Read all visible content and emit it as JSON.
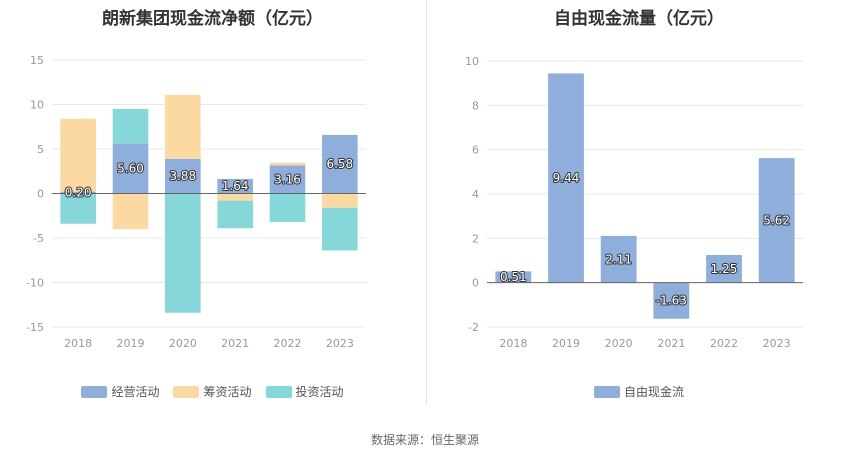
{
  "source_note": "数据来源：恒生聚源",
  "chart_data": [
    {
      "type": "bar",
      "stacked": true,
      "title": "朗新集团现金流净额（亿元）",
      "categories": [
        "2018",
        "2019",
        "2020",
        "2021",
        "2022",
        "2023"
      ],
      "ylim": [
        -15,
        15
      ],
      "yticks": [
        -15,
        -10,
        -5,
        0,
        5,
        10,
        15
      ],
      "grid": true,
      "legend_position": "bottom",
      "series": [
        {
          "name": "经营活动",
          "color": "#8eaedc",
          "values": [
            0.2,
            5.6,
            3.88,
            1.64,
            3.16,
            6.58
          ],
          "show_labels": true
        },
        {
          "name": "筹资活动",
          "color": "#fcd9a0",
          "values": [
            8.2,
            -4.0,
            7.2,
            -0.8,
            0.3,
            -1.6
          ],
          "show_labels": false
        },
        {
          "name": "投资活动",
          "color": "#86d7d9",
          "values": [
            -3.4,
            3.9,
            -13.4,
            -3.1,
            -3.2,
            -4.8
          ],
          "show_labels": false
        }
      ],
      "labels": [
        "0.20",
        "5.60",
        "3.88",
        "1.64",
        "3.16",
        "6.58"
      ]
    },
    {
      "type": "bar",
      "title": "自由现金流量（亿元）",
      "categories": [
        "2018",
        "2019",
        "2020",
        "2021",
        "2022",
        "2023"
      ],
      "ylim": [
        -2,
        10
      ],
      "yticks": [
        -2,
        0,
        2,
        4,
        6,
        8,
        10
      ],
      "grid": true,
      "legend_position": "bottom",
      "series": [
        {
          "name": "自由现金流",
          "color": "#8eaedc",
          "values": [
            0.51,
            9.44,
            2.11,
            -1.63,
            1.25,
            5.62
          ]
        }
      ],
      "labels": [
        "0.51",
        "9.44",
        "2.11",
        "-1.63",
        "1.25",
        "5.62"
      ]
    }
  ]
}
